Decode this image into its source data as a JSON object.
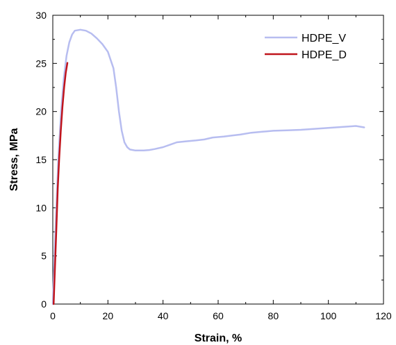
{
  "chart_data": {
    "type": "line",
    "xlabel": "Strain, %",
    "ylabel": "Stress, MPa",
    "xlim": [
      0,
      120
    ],
    "ylim": [
      0,
      30
    ],
    "x_ticks": [
      0,
      20,
      40,
      60,
      80,
      100,
      120
    ],
    "y_ticks": [
      0,
      5,
      10,
      15,
      20,
      25,
      30
    ],
    "grid": false,
    "legend_position": "top-right",
    "series": [
      {
        "name": "HDPE_V",
        "color": "#b7bdf0",
        "points": [
          [
            0,
            0
          ],
          [
            1,
            8
          ],
          [
            2,
            15
          ],
          [
            3,
            20
          ],
          [
            4,
            23.5
          ],
          [
            5,
            25.8
          ],
          [
            6,
            27.2
          ],
          [
            7,
            28
          ],
          [
            8,
            28.4
          ],
          [
            10,
            28.5
          ],
          [
            12,
            28.4
          ],
          [
            14,
            28.1
          ],
          [
            16,
            27.6
          ],
          [
            18,
            27
          ],
          [
            20,
            26.2
          ],
          [
            22,
            24.5
          ],
          [
            23,
            22.5
          ],
          [
            24,
            20
          ],
          [
            25,
            18
          ],
          [
            26,
            16.8
          ],
          [
            27,
            16.3
          ],
          [
            28,
            16.05
          ],
          [
            30,
            15.95
          ],
          [
            33,
            15.95
          ],
          [
            35,
            16.0
          ],
          [
            37,
            16.1
          ],
          [
            40,
            16.3
          ],
          [
            43,
            16.6
          ],
          [
            45,
            16.8
          ],
          [
            48,
            16.9
          ],
          [
            52,
            17.0
          ],
          [
            55,
            17.1
          ],
          [
            58,
            17.3
          ],
          [
            62,
            17.4
          ],
          [
            65,
            17.5
          ],
          [
            68,
            17.6
          ],
          [
            72,
            17.8
          ],
          [
            76,
            17.9
          ],
          [
            80,
            18.0
          ],
          [
            85,
            18.05
          ],
          [
            90,
            18.1
          ],
          [
            95,
            18.2
          ],
          [
            100,
            18.3
          ],
          [
            105,
            18.4
          ],
          [
            110,
            18.5
          ],
          [
            113,
            18.35
          ]
        ]
      },
      {
        "name": "HDPE_D",
        "color": "#c0141c",
        "points": [
          [
            0.3,
            0
          ],
          [
            0.8,
            4
          ],
          [
            1.3,
            8
          ],
          [
            1.8,
            12
          ],
          [
            2.3,
            15
          ],
          [
            2.9,
            18
          ],
          [
            3.5,
            20.5
          ],
          [
            4.1,
            22.5
          ],
          [
            4.7,
            24
          ],
          [
            5.3,
            25.05
          ]
        ]
      }
    ]
  }
}
